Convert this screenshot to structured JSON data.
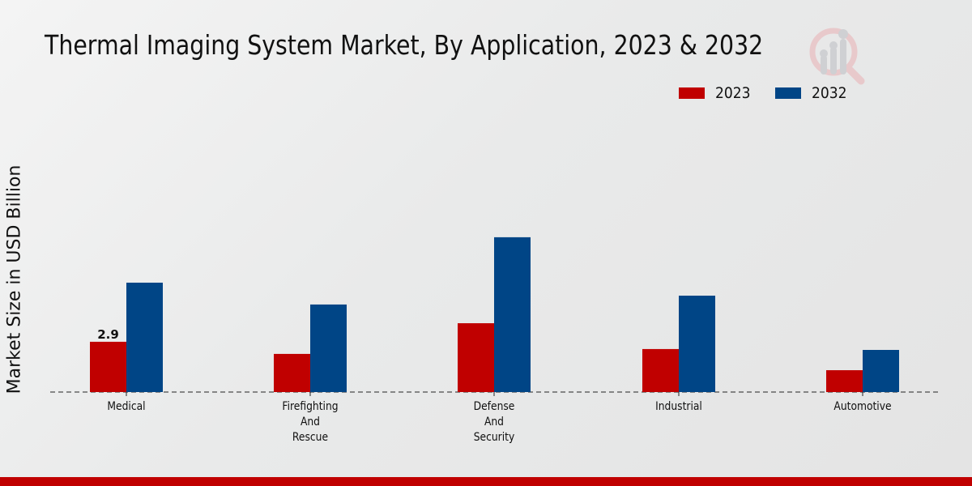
{
  "chart_data": {
    "type": "bar",
    "title": "Thermal Imaging System Market, By Application, 2023 & 2032",
    "xlabel": "",
    "ylabel": "Market Size in USD Billion",
    "categories": [
      [
        "Medical"
      ],
      [
        "Firefighting",
        "And",
        "Rescue"
      ],
      [
        "Defense",
        "And",
        "Security"
      ],
      [
        "Industrial"
      ],
      [
        "Automotive"
      ]
    ],
    "series": [
      {
        "name": "2023",
        "color": "#c00000",
        "values": [
          2.9,
          2.2,
          3.97,
          2.48,
          1.26
        ]
      },
      {
        "name": "2032",
        "color": "#004586",
        "values": [
          6.31,
          5.05,
          8.93,
          5.56,
          2.43
        ]
      }
    ],
    "data_labels": [
      {
        "series": "2023",
        "category_index": 0,
        "text": "2.9"
      }
    ],
    "ylim": [
      0,
      11.2
    ],
    "grid": false,
    "baseline": "dashed",
    "legend_position": "top-right"
  },
  "colors": {
    "series_2023": "#c00000",
    "series_2032": "#004586",
    "footer_bar": "#c00000"
  },
  "logo": {
    "icon": "magnifier-bar-chart-icon"
  }
}
